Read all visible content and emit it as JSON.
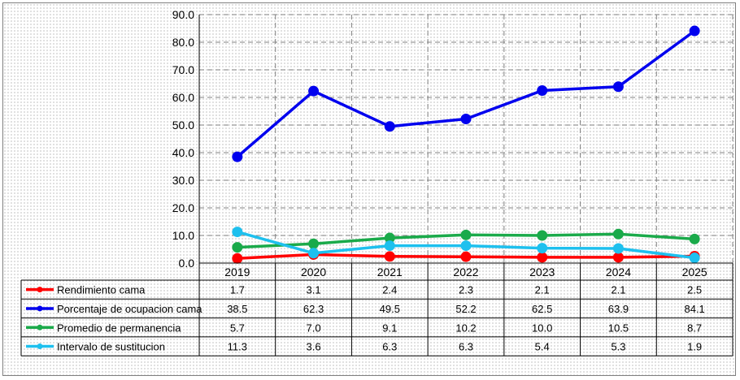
{
  "chart_data": {
    "type": "line",
    "categories": [
      "2019",
      "2020",
      "2021",
      "2022",
      "2023",
      "2024",
      "2025"
    ],
    "ylim": [
      0,
      90
    ],
    "y_ticks": [
      "0.0",
      "10.0",
      "20.0",
      "30.0",
      "40.0",
      "50.0",
      "60.0",
      "70.0",
      "80.0",
      "90.0"
    ],
    "grid": true,
    "legend": "data-table-below",
    "series": [
      {
        "name": "Rendimiento cama",
        "color": "#ff0000",
        "values": [
          1.7,
          3.1,
          2.4,
          2.3,
          2.1,
          2.1,
          2.5
        ],
        "labels": [
          "1.7",
          "3.1",
          "2.4",
          "2.3",
          "2.1",
          "2.1",
          "2.5"
        ]
      },
      {
        "name": "Porcentaje de ocupacion cama",
        "color": "#0000ee",
        "values": [
          38.5,
          62.3,
          49.5,
          52.2,
          62.5,
          63.9,
          84.1
        ],
        "labels": [
          "38.5",
          "62.3",
          "49.5",
          "52.2",
          "62.5",
          "63.9",
          "84.1"
        ]
      },
      {
        "name": "Promedio de permanencia",
        "color": "#1aaa4a",
        "values": [
          5.7,
          7.0,
          9.1,
          10.2,
          10.0,
          10.5,
          8.7
        ],
        "labels": [
          "5.7",
          "7.0",
          "9.1",
          "10.2",
          "10.0",
          "10.5",
          "8.7"
        ]
      },
      {
        "name": "Intervalo de sustitucion",
        "color": "#1ec0ee",
        "values": [
          11.3,
          3.6,
          6.3,
          6.3,
          5.4,
          5.3,
          1.9
        ],
        "labels": [
          "11.3",
          "3.6",
          "6.3",
          "6.3",
          "5.4",
          "5.3",
          "1.9"
        ]
      }
    ]
  }
}
